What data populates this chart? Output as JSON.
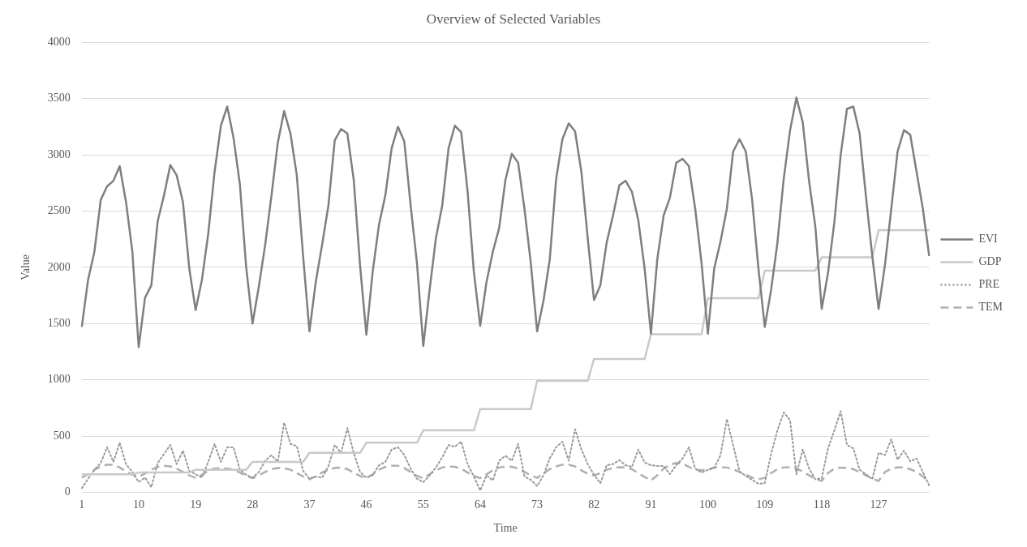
{
  "chart_data": {
    "type": "line",
    "title": "Overview of Selected Variables",
    "xlabel": "Time",
    "ylabel": "Value",
    "categories": [
      "1",
      null,
      null,
      null,
      null,
      null,
      null,
      null,
      null,
      "10",
      null,
      null,
      null,
      null,
      null,
      null,
      null,
      null,
      "19",
      null,
      null,
      null,
      null,
      null,
      null,
      null,
      null,
      "28",
      null,
      null,
      null,
      null,
      null,
      null,
      null,
      null,
      "37",
      null,
      null,
      null,
      null,
      null,
      null,
      null,
      null,
      "46",
      null,
      null,
      null,
      null,
      null,
      null,
      null,
      null,
      "55",
      null,
      null,
      null,
      null,
      null,
      null,
      null,
      null,
      "64",
      null,
      null,
      null,
      null,
      null,
      null,
      null,
      null,
      "73",
      null,
      null,
      null,
      null,
      null,
      null,
      null,
      null,
      "82",
      null,
      null,
      null,
      null,
      null,
      null,
      null,
      null,
      "91",
      null,
      null,
      null,
      null,
      null,
      null,
      null,
      null,
      "100",
      null,
      null,
      null,
      null,
      null,
      null,
      null,
      null,
      "109",
      null,
      null,
      null,
      null,
      null,
      null,
      null,
      null,
      "118",
      null,
      null,
      null,
      null,
      null,
      null,
      null,
      null,
      "127",
      null,
      null,
      null,
      null,
      null,
      null,
      null,
      null
    ],
    "series": [
      {
        "name": "EVI",
        "color": "#7f7f7f",
        "line_style": "solid",
        "values": [
          1470,
          1890,
          2140,
          2600,
          2720,
          2770,
          2900,
          2580,
          2140,
          1290,
          1730,
          1840,
          2410,
          2640,
          2910,
          2820,
          2580,
          1990,
          1620,
          1890,
          2300,
          2850,
          3260,
          3430,
          3150,
          2740,
          2000,
          1500,
          1830,
          2200,
          2640,
          3110,
          3390,
          3190,
          2820,
          2100,
          1430,
          1870,
          2200,
          2550,
          3130,
          3230,
          3190,
          2780,
          2020,
          1400,
          1960,
          2380,
          2640,
          3060,
          3250,
          3120,
          2550,
          2040,
          1300,
          1800,
          2260,
          2550,
          3060,
          3260,
          3200,
          2680,
          1960,
          1480,
          1870,
          2140,
          2350,
          2780,
          3010,
          2930,
          2520,
          2040,
          1430,
          1700,
          2070,
          2780,
          3140,
          3280,
          3210,
          2850,
          2260,
          1710,
          1840,
          2220,
          2460,
          2730,
          2770,
          2670,
          2420,
          1990,
          1410,
          2070,
          2460,
          2620,
          2930,
          2965,
          2900,
          2520,
          2040,
          1410,
          1990,
          2230,
          2520,
          3030,
          3140,
          3030,
          2600,
          1990,
          1470,
          1800,
          2220,
          2790,
          3220,
          3510,
          3290,
          2770,
          2360,
          1630,
          1950,
          2400,
          3000,
          3410,
          3430,
          3190,
          2630,
          2100,
          1630,
          2020,
          2520,
          3030,
          3220,
          3180,
          2850,
          2520,
          2100
        ]
      },
      {
        "name": "GDP",
        "color": "#c9c9c9",
        "line_style": "solid",
        "values": [
          160,
          160,
          160,
          160,
          160,
          160,
          160,
          160,
          160,
          175,
          175,
          175,
          175,
          175,
          175,
          175,
          175,
          175,
          200,
          200,
          200,
          200,
          200,
          200,
          200,
          200,
          200,
          270,
          270,
          270,
          270,
          270,
          270,
          270,
          270,
          270,
          350,
          350,
          350,
          350,
          350,
          350,
          350,
          350,
          350,
          440,
          440,
          440,
          440,
          440,
          440,
          440,
          440,
          440,
          550,
          550,
          550,
          550,
          550,
          550,
          550,
          550,
          550,
          740,
          740,
          740,
          740,
          740,
          740,
          740,
          740,
          740,
          990,
          990,
          990,
          990,
          990,
          990,
          990,
          990,
          990,
          1185,
          1185,
          1185,
          1185,
          1185,
          1185,
          1185,
          1185,
          1185,
          1405,
          1405,
          1405,
          1405,
          1405,
          1405,
          1405,
          1405,
          1405,
          1725,
          1725,
          1725,
          1725,
          1725,
          1725,
          1725,
          1725,
          1725,
          1970,
          1970,
          1970,
          1970,
          1970,
          1970,
          1970,
          1970,
          1970,
          2090,
          2090,
          2090,
          2090,
          2090,
          2090,
          2090,
          2090,
          2090,
          2330,
          2330,
          2330,
          2330,
          2330,
          2330,
          2330,
          2330,
          2330
        ]
      },
      {
        "name": "PRE",
        "color": "#9a9a9a",
        "line_style": "dotted",
        "values": [
          35,
          120,
          200,
          260,
          400,
          270,
          440,
          250,
          180,
          90,
          130,
          45,
          260,
          340,
          420,
          250,
          370,
          190,
          160,
          130,
          270,
          430,
          270,
          400,
          400,
          200,
          155,
          130,
          180,
          280,
          330,
          270,
          620,
          430,
          410,
          190,
          120,
          140,
          130,
          230,
          420,
          350,
          570,
          350,
          180,
          130,
          150,
          240,
          270,
          380,
          400,
          330,
          210,
          120,
          90,
          150,
          220,
          310,
          420,
          405,
          450,
          250,
          140,
          15,
          150,
          105,
          280,
          325,
          280,
          430,
          140,
          110,
          55,
          150,
          300,
          400,
          450,
          280,
          560,
          380,
          250,
          155,
          80,
          240,
          250,
          285,
          240,
          225,
          380,
          265,
          240,
          234,
          234,
          160,
          240,
          300,
          400,
          210,
          175,
          200,
          215,
          330,
          650,
          420,
          185,
          145,
          110,
          75,
          80,
          340,
          550,
          710,
          640,
          160,
          380,
          210,
          115,
          125,
          390,
          550,
          720,
          420,
          390,
          200,
          160,
          115,
          350,
          330,
          470,
          290,
          370,
          275,
          300,
          180,
          60
        ]
      },
      {
        "name": "TEM",
        "color": "#afafaf",
        "line_style": "dashed",
        "values": [
          130,
          160,
          200,
          230,
          245,
          245,
          220,
          185,
          155,
          140,
          165,
          200,
          225,
          235,
          230,
          210,
          180,
          150,
          128,
          155,
          190,
          210,
          215,
          210,
          200,
          175,
          145,
          125,
          150,
          180,
          205,
          215,
          213,
          200,
          170,
          140,
          115,
          140,
          175,
          200,
          215,
          220,
          205,
          175,
          145,
          125,
          160,
          200,
          225,
          235,
          235,
          215,
          180,
          145,
          125,
          160,
          195,
          220,
          228,
          226,
          210,
          175,
          145,
          125,
          160,
          195,
          220,
          228,
          226,
          210,
          180,
          150,
          128,
          165,
          205,
          230,
          245,
          245,
          230,
          195,
          165,
          150,
          170,
          200,
          215,
          222,
          221,
          205,
          170,
          135,
          105,
          150,
          210,
          245,
          260,
          255,
          225,
          200,
          195,
          200,
          220,
          222,
          220,
          205,
          180,
          155,
          130,
          115,
          128,
          170,
          205,
          220,
          222,
          210,
          185,
          150,
          120,
          100,
          170,
          210,
          218,
          218,
          205,
          180,
          150,
          120,
          100,
          180,
          210,
          221,
          221,
          205,
          180,
          140,
          88
        ]
      }
    ],
    "ylim": [
      0,
      4000
    ],
    "yticks": [
      0,
      500,
      1000,
      1500,
      2000,
      2500,
      3000,
      3500,
      4000
    ],
    "grid": "y",
    "legend": "right",
    "marker": "none"
  }
}
